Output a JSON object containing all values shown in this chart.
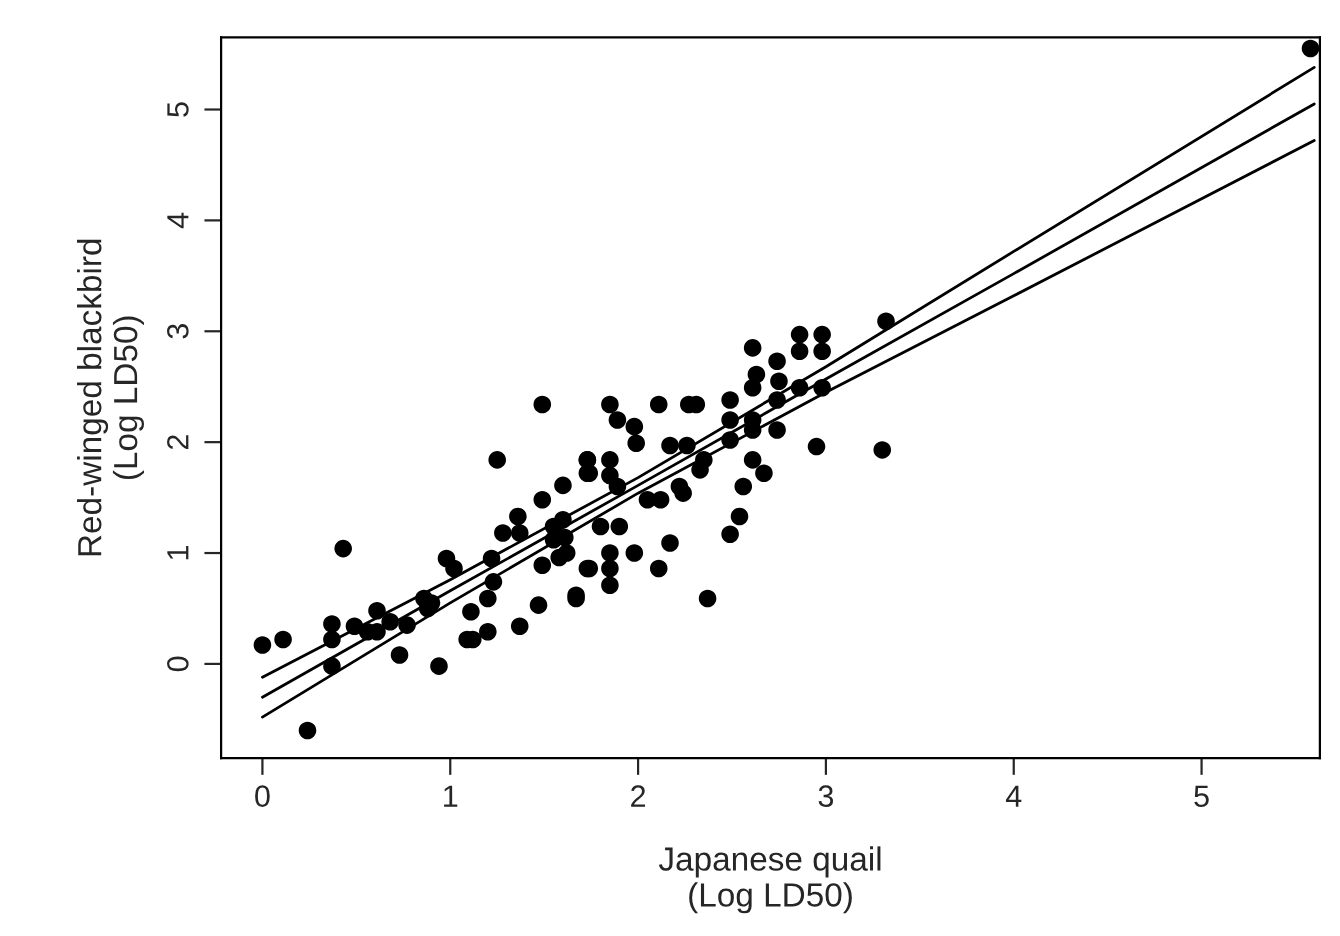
{
  "chart_data": {
    "type": "scatter",
    "xlabel": "Japanese quail\n(Log LD50)",
    "ylabel": "Red-winged blackbird\n(Log LD50)",
    "xlim": [
      -0.22,
      5.63
    ],
    "ylim": [
      -0.85,
      5.65
    ],
    "xticks": [
      0,
      1,
      2,
      3,
      4,
      5
    ],
    "yticks": [
      0,
      1,
      2,
      3,
      4,
      5
    ],
    "grid": false,
    "legend": false,
    "series": [
      {
        "marker": "circle",
        "color": "#000000",
        "x": [
          0.0,
          0.11,
          0.24,
          0.37,
          0.37,
          0.37,
          0.43,
          0.49,
          0.56,
          0.61,
          0.61,
          0.68,
          0.73,
          0.77,
          0.86,
          0.88,
          0.9,
          0.94,
          0.98,
          1.02,
          1.11,
          1.09,
          1.12,
          1.2,
          1.2,
          1.23,
          1.25,
          1.22,
          1.28,
          1.36,
          1.37,
          1.37,
          1.47,
          1.49,
          1.49,
          1.49,
          1.55,
          1.55,
          1.6,
          1.6,
          1.58,
          1.67,
          1.73,
          1.73,
          1.74,
          1.62,
          1.85,
          1.89,
          2.11,
          2.27,
          2.31,
          2.61,
          2.86,
          2.98,
          2.86,
          2.98,
          3.32,
          2.74,
          2.63,
          2.61,
          2.75,
          2.86,
          2.98,
          2.74,
          2.74,
          2.49,
          2.49,
          2.49,
          2.61,
          2.61,
          2.95,
          3.3,
          1.98,
          1.99,
          2.17,
          2.26,
          2.35,
          2.33,
          2.61,
          2.67,
          2.56,
          2.54,
          2.49,
          2.37,
          1.73,
          1.73,
          1.85,
          1.85,
          1.89,
          2.05,
          2.12,
          2.24,
          2.22,
          1.8,
          1.9,
          1.85,
          1.98,
          2.17,
          1.74,
          1.85,
          1.85,
          2.11,
          1.67,
          1.61,
          5.58
        ],
        "values": [
          0.17,
          0.22,
          -0.6,
          0.36,
          0.22,
          -0.02,
          1.04,
          0.34,
          0.29,
          0.48,
          0.29,
          0.38,
          0.08,
          0.35,
          0.59,
          0.5,
          0.55,
          -0.02,
          0.95,
          0.86,
          0.47,
          0.22,
          0.22,
          0.29,
          0.59,
          0.74,
          1.84,
          0.95,
          1.18,
          1.33,
          1.18,
          0.34,
          0.53,
          0.89,
          2.34,
          1.48,
          1.24,
          1.12,
          1.3,
          1.61,
          0.96,
          0.62,
          0.86,
          1.84,
          1.72,
          1.0,
          2.34,
          2.2,
          2.34,
          2.34,
          2.34,
          2.85,
          2.97,
          2.97,
          2.82,
          2.82,
          3.09,
          2.73,
          2.61,
          2.49,
          2.55,
          2.49,
          2.49,
          2.38,
          2.11,
          2.38,
          2.2,
          2.02,
          2.2,
          2.11,
          1.96,
          1.93,
          2.14,
          1.99,
          1.97,
          1.97,
          1.84,
          1.75,
          1.84,
          1.72,
          1.6,
          1.33,
          1.17,
          0.59,
          1.84,
          1.72,
          1.84,
          1.7,
          1.6,
          1.48,
          1.48,
          1.54,
          1.6,
          1.24,
          1.24,
          1.0,
          1.0,
          1.09,
          0.86,
          0.86,
          0.71,
          0.86,
          0.59,
          1.14,
          5.55
        ]
      },
      {
        "type": "line",
        "color": "#000000",
        "x": [
          0,
          1,
          2,
          3,
          4,
          5.6
        ],
        "values": [
          -0.3,
          0.66,
          1.61,
          2.57,
          3.52,
          5.05
        ]
      },
      {
        "type": "line",
        "color": "#000000",
        "x": [
          0,
          1,
          2,
          3,
          4,
          5.6
        ],
        "values": [
          -0.48,
          0.55,
          1.54,
          2.45,
          3.32,
          4.72
        ]
      },
      {
        "type": "line",
        "color": "#000000",
        "x": [
          0,
          1,
          2,
          3,
          4,
          5.6
        ],
        "values": [
          -0.12,
          0.76,
          1.68,
          2.68,
          3.72,
          5.38
        ]
      }
    ]
  }
}
